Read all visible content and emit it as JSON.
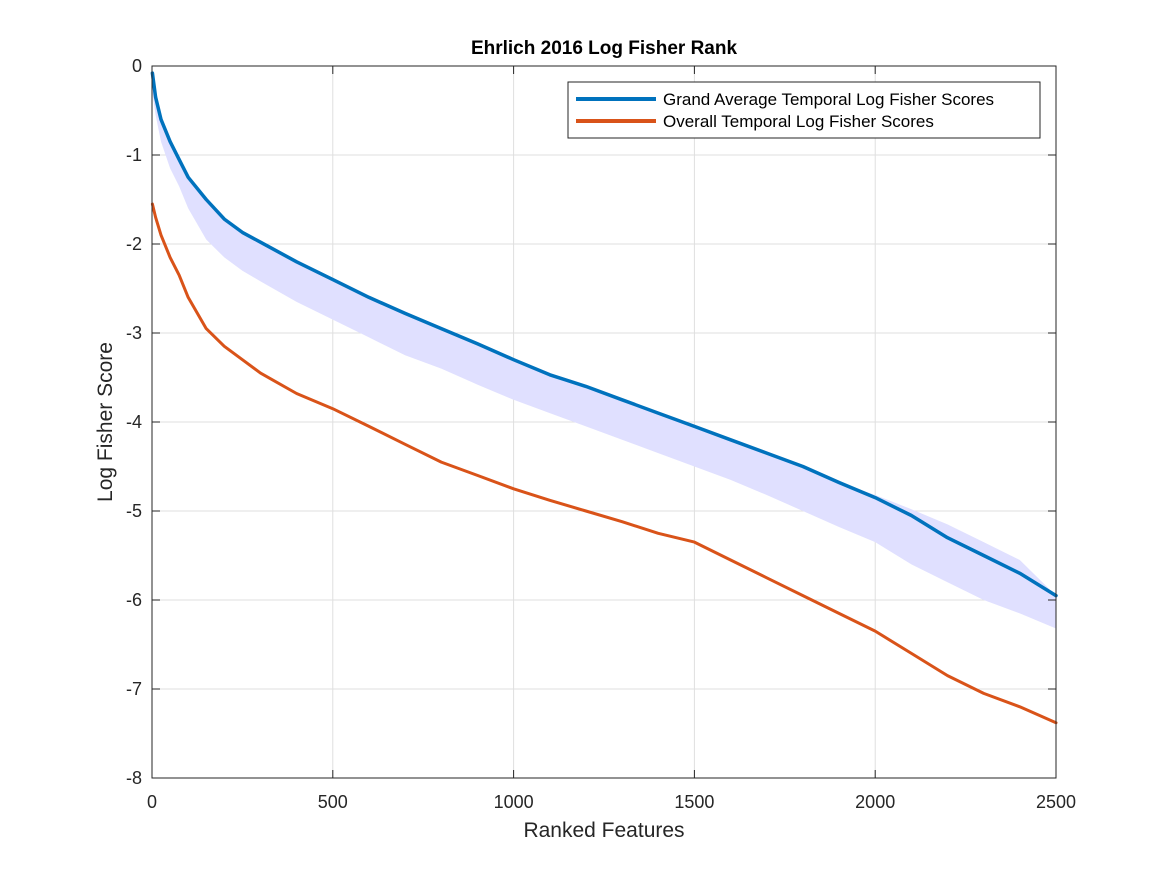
{
  "chart_data": {
    "type": "line",
    "title": "Ehrlich 2016 Log Fisher Rank",
    "xlabel": "Ranked Features",
    "ylabel": "Log Fisher Score",
    "xlim": [
      0,
      2500
    ],
    "ylim": [
      -8,
      0
    ],
    "x_ticks": [
      0,
      500,
      1000,
      1500,
      2000,
      2500
    ],
    "y_ticks": [
      0,
      -1,
      -2,
      -3,
      -4,
      -5,
      -6,
      -7,
      -8
    ],
    "grid": true,
    "legend_position": "top-right",
    "series": [
      {
        "name": "Grand Average Temporal Log Fisher Scores",
        "color": "#0072BD",
        "x": [
          1,
          10,
          25,
          50,
          75,
          100,
          150,
          200,
          250,
          300,
          400,
          500,
          600,
          700,
          800,
          900,
          1000,
          1100,
          1200,
          1300,
          1400,
          1500,
          1600,
          1700,
          1800,
          1900,
          2000,
          2100,
          2200,
          2300,
          2400,
          2500
        ],
        "y": [
          -0.08,
          -0.35,
          -0.6,
          -0.85,
          -1.05,
          -1.25,
          -1.5,
          -1.72,
          -1.87,
          -1.98,
          -2.2,
          -2.4,
          -2.6,
          -2.78,
          -2.95,
          -3.12,
          -3.3,
          -3.47,
          -3.6,
          -3.75,
          -3.9,
          -4.05,
          -4.2,
          -4.35,
          -4.5,
          -4.68,
          -4.85,
          -5.05,
          -5.3,
          -5.5,
          -5.7,
          -5.95
        ]
      },
      {
        "name": "Overall Temporal Log Fisher Scores",
        "color": "#D95319",
        "x": [
          1,
          10,
          25,
          50,
          75,
          100,
          150,
          200,
          250,
          300,
          400,
          500,
          600,
          700,
          800,
          900,
          1000,
          1100,
          1200,
          1300,
          1400,
          1500,
          1600,
          1700,
          1800,
          1900,
          2000,
          2100,
          2200,
          2300,
          2400,
          2500
        ],
        "y": [
          -1.55,
          -1.7,
          -1.9,
          -2.15,
          -2.35,
          -2.6,
          -2.95,
          -3.15,
          -3.3,
          -3.45,
          -3.68,
          -3.85,
          -4.05,
          -4.25,
          -4.45,
          -4.6,
          -4.75,
          -4.88,
          -5.0,
          -5.12,
          -5.25,
          -5.35,
          -5.55,
          -5.75,
          -5.95,
          -6.15,
          -6.35,
          -6.6,
          -6.85,
          -7.05,
          -7.2,
          -7.38
        ]
      }
    ],
    "band": {
      "color": "#e0e0ff",
      "x": [
        1,
        10,
        25,
        50,
        75,
        100,
        150,
        200,
        250,
        300,
        400,
        500,
        600,
        700,
        800,
        900,
        1000,
        1100,
        1200,
        1300,
        1400,
        1500,
        1600,
        1700,
        1800,
        1900,
        2000,
        2100,
        2200,
        2300,
        2400,
        2500
      ],
      "upper": [
        -0.08,
        -0.35,
        -0.6,
        -0.85,
        -1.05,
        -1.25,
        -1.5,
        -1.72,
        -1.87,
        -1.98,
        -2.2,
        -2.4,
        -2.6,
        -2.78,
        -2.95,
        -3.12,
        -3.3,
        -3.47,
        -3.6,
        -3.75,
        -3.9,
        -4.05,
        -4.2,
        -4.35,
        -4.5,
        -4.68,
        -4.82,
        -4.98,
        -5.15,
        -5.35,
        -5.55,
        -5.95
      ],
      "lower": [
        -0.3,
        -0.55,
        -0.85,
        -1.15,
        -1.35,
        -1.6,
        -1.95,
        -2.15,
        -2.3,
        -2.42,
        -2.65,
        -2.85,
        -3.05,
        -3.25,
        -3.4,
        -3.58,
        -3.75,
        -3.9,
        -4.05,
        -4.2,
        -4.35,
        -4.5,
        -4.65,
        -4.82,
        -5.0,
        -5.18,
        -5.35,
        -5.6,
        -5.8,
        -6.0,
        -6.15,
        -6.32
      ]
    }
  }
}
